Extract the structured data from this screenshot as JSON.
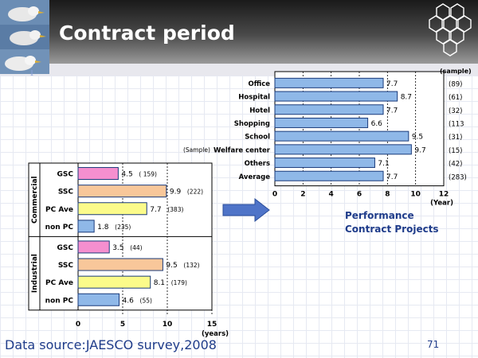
{
  "slide": {
    "title": "Contract period",
    "source": "Data source:JAESCO survey,2008",
    "page_number": "71"
  },
  "annotation": {
    "line1": "Performance",
    "line2": "Contract Projects"
  },
  "colors": {
    "header_dark": "#3a3a3a",
    "bar_blue": "#8fb8e8",
    "bar_pink": "#f58fcf",
    "bar_orange": "#f8c79a",
    "bar_yellow": "#fbfb8a",
    "arrow": "#4f74c8"
  },
  "chart_data": [
    {
      "type": "bar",
      "orientation": "horizontal",
      "categories": [
        "Office",
        "Hospital",
        "Hotel",
        "Shopping",
        "School",
        "Welfare center",
        "Others",
        "Average"
      ],
      "values": [
        7.7,
        8.7,
        7.7,
        6.6,
        9.5,
        9.7,
        7.1,
        7.7
      ],
      "samples": [
        "(89)",
        "(61)",
        "(32)",
        "(113",
        "(31)",
        "(15)",
        "(42)",
        "(283)"
      ],
      "sample_header": "(sample)",
      "sample_side_label": "(Sample)",
      "xlabel": "(Year)",
      "xlim": [
        0,
        12
      ],
      "xticks": [
        0,
        2,
        4,
        6,
        8,
        10,
        12
      ]
    },
    {
      "type": "bar",
      "orientation": "horizontal",
      "groups": [
        "Commercial",
        "Industrial"
      ],
      "categories": [
        "GSC",
        "SSC",
        "PC Ave",
        "non PC",
        "GSC",
        "SSC",
        "PC Ave",
        "non PC"
      ],
      "values": [
        4.5,
        9.9,
        7.7,
        1.8,
        3.5,
        9.5,
        8.1,
        4.6
      ],
      "samples": [
        "( 159)",
        "(222)",
        "(383)",
        "(235)",
        "(44)",
        "(132)",
        "(179)",
        "(55)"
      ],
      "xlabel": "(years)",
      "xlim": [
        0,
        15
      ],
      "xticks": [
        0,
        5,
        10,
        15
      ]
    }
  ]
}
